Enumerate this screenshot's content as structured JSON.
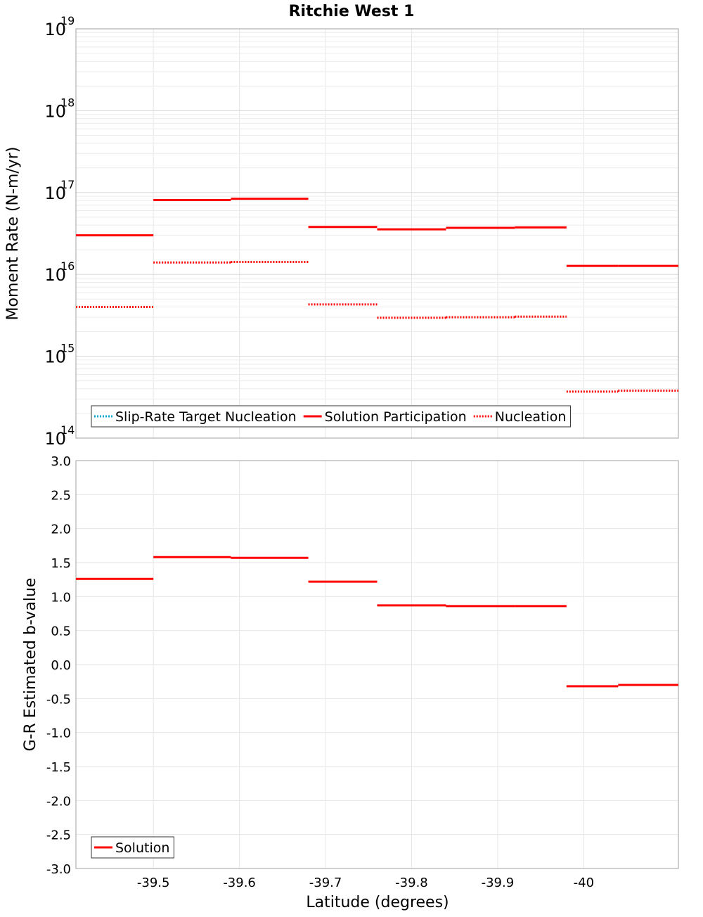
{
  "chart_data": [
    {
      "type": "line",
      "title": "Ritchie West 1",
      "xlabel": "",
      "ylabel": "Moment Rate (N-m/yr)",
      "yscale": "log",
      "ylim": [
        100000000000000.0,
        1e+19
      ],
      "xlim": [
        -39.41,
        -40.11
      ],
      "x_reversed": true,
      "x_ticks": [
        -39.5,
        -39.6,
        -39.7,
        -39.8,
        -39.9,
        -40
      ],
      "x_tick_labels": [
        "",
        "",
        "",
        "",
        "",
        ""
      ],
      "y_tick_exponents": [
        "14",
        "15",
        "16",
        "17",
        "18",
        "19"
      ],
      "y_tick_base": "10",
      "grid": true,
      "legend": {
        "position": "bottom-left",
        "entries": [
          "Slip-Rate Target Nucleation",
          "Solution Participation",
          "Nucleation"
        ]
      },
      "series": [
        {
          "name": "Solution Participation",
          "color": "#ff0000",
          "style": "solid",
          "segments": [
            {
              "x0": -39.41,
              "x1": -39.5,
              "y": 3e+16
            },
            {
              "x0": -39.5,
              "x1": -39.59,
              "y": 8.1e+16
            },
            {
              "x0": -39.59,
              "x1": -39.68,
              "y": 8.4e+16
            },
            {
              "x0": -39.68,
              "x1": -39.76,
              "y": 3.8e+16
            },
            {
              "x0": -39.76,
              "x1": -39.84,
              "y": 3.55e+16
            },
            {
              "x0": -39.84,
              "x1": -39.92,
              "y": 3.7e+16
            },
            {
              "x0": -39.92,
              "x1": -39.98,
              "y": 3.75e+16
            },
            {
              "x0": -39.98,
              "x1": -40.04,
              "y": 1.27e+16
            },
            {
              "x0": -40.04,
              "x1": -40.11,
              "y": 1.27e+16
            }
          ]
        },
        {
          "name": "Nucleation",
          "color": "#ff0000",
          "style": "dotted",
          "segments": [
            {
              "x0": -39.41,
              "x1": -39.5,
              "y": 4000000000000000.0
            },
            {
              "x0": -39.5,
              "x1": -39.59,
              "y": 1.4e+16
            },
            {
              "x0": -39.59,
              "x1": -39.68,
              "y": 1.42e+16
            },
            {
              "x0": -39.68,
              "x1": -39.76,
              "y": 4300000000000000.0
            },
            {
              "x0": -39.76,
              "x1": -39.84,
              "y": 2950000000000000.0
            },
            {
              "x0": -39.84,
              "x1": -39.92,
              "y": 3000000000000000.0
            },
            {
              "x0": -39.92,
              "x1": -39.98,
              "y": 3050000000000000.0
            },
            {
              "x0": -39.98,
              "x1": -40.04,
              "y": 370000000000000.0
            },
            {
              "x0": -40.04,
              "x1": -40.11,
              "y": 380000000000000.0
            }
          ]
        }
      ]
    },
    {
      "type": "line",
      "title": "",
      "xlabel": "Latitude (degrees)",
      "ylabel": "G-R Estimated b-value",
      "yscale": "linear",
      "ylim": [
        -3.0,
        3.0
      ],
      "xlim": [
        -39.41,
        -40.11
      ],
      "x_reversed": true,
      "x_ticks": [
        -39.5,
        -39.6,
        -39.7,
        -39.8,
        -39.9,
        -40
      ],
      "x_tick_labels": [
        "-39.5",
        "-39.6",
        "-39.7",
        "-39.8",
        "-39.9",
        "-40"
      ],
      "y_ticks": [
        -3.0,
        -2.5,
        -2.0,
        -1.5,
        -1.0,
        -0.5,
        0.0,
        0.5,
        1.0,
        1.5,
        2.0,
        2.5,
        3.0
      ],
      "y_tick_labels": [
        "-3.0",
        "-2.5",
        "-2.0",
        "-1.5",
        "-1.0",
        "-0.5",
        "0.0",
        "0.5",
        "1.0",
        "1.5",
        "2.0",
        "2.5",
        "3.0"
      ],
      "grid": true,
      "legend": {
        "position": "bottom-left",
        "entries": [
          "Solution"
        ]
      },
      "series": [
        {
          "name": "Solution",
          "color": "#ff0000",
          "style": "solid",
          "segments": [
            {
              "x0": -39.41,
              "x1": -39.5,
              "y": 1.26
            },
            {
              "x0": -39.5,
              "x1": -39.59,
              "y": 1.58
            },
            {
              "x0": -39.59,
              "x1": -39.68,
              "y": 1.57
            },
            {
              "x0": -39.68,
              "x1": -39.76,
              "y": 1.22
            },
            {
              "x0": -39.76,
              "x1": -39.84,
              "y": 0.87
            },
            {
              "x0": -39.84,
              "x1": -39.92,
              "y": 0.86
            },
            {
              "x0": -39.92,
              "x1": -39.98,
              "y": 0.86
            },
            {
              "x0": -39.98,
              "x1": -40.04,
              "y": -0.32
            },
            {
              "x0": -40.04,
              "x1": -40.11,
              "y": -0.3
            }
          ]
        }
      ]
    }
  ],
  "colors": {
    "series_red": "#ff0000",
    "target_teal": "#00aacc",
    "grid": "#e6e6e6",
    "frame": "#a0a0a0"
  }
}
